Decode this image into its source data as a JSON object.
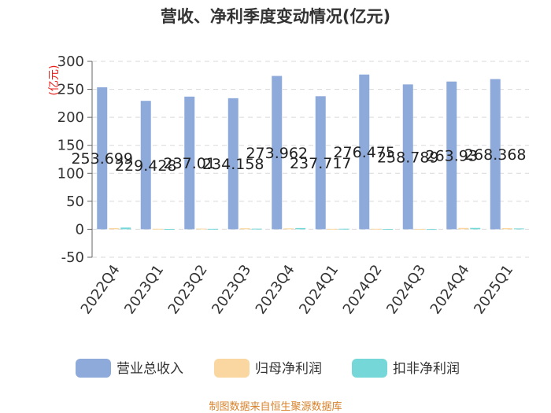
{
  "chart_data": {
    "type": "bar",
    "title": "营收、净利季度变动情况(亿元)",
    "ylabel": "(亿元)",
    "ylim": [
      -50,
      300
    ],
    "yticks": [
      -50,
      0,
      50,
      100,
      150,
      200,
      250,
      300
    ],
    "grid": true,
    "legend_position": "bottom",
    "categories": [
      "2022Q4",
      "2023Q1",
      "2023Q2",
      "2023Q3",
      "2023Q4",
      "2024Q1",
      "2024Q2",
      "2024Q3",
      "2024Q4",
      "2025Q1"
    ],
    "series": [
      {
        "name": "营业总收入",
        "color": "#8eaadb",
        "values": [
          253.699,
          229.428,
          237.01,
          234.158,
          273.962,
          237.717,
          276.475,
          258.789,
          263.93,
          268.368
        ],
        "labels": [
          "253.699",
          "229.428",
          "237.01",
          "234.158",
          "273.962",
          "237.717",
          "276.475",
          "258.789",
          "263.93",
          "268.368"
        ]
      },
      {
        "name": "归母净利润",
        "color": "#fad7a0",
        "values": [
          2.1,
          0.9,
          1.2,
          1.8,
          1.6,
          0.8,
          0.9,
          0.7,
          2.3,
          2.0
        ]
      },
      {
        "name": "扣非净利润",
        "color": "#76d7d9",
        "values": [
          3.0,
          0.6,
          0.8,
          1.1,
          2.2,
          1.0,
          0.5,
          0.4,
          2.4,
          1.5
        ]
      }
    ],
    "source": "制图数据来自恒生聚源数据库"
  }
}
